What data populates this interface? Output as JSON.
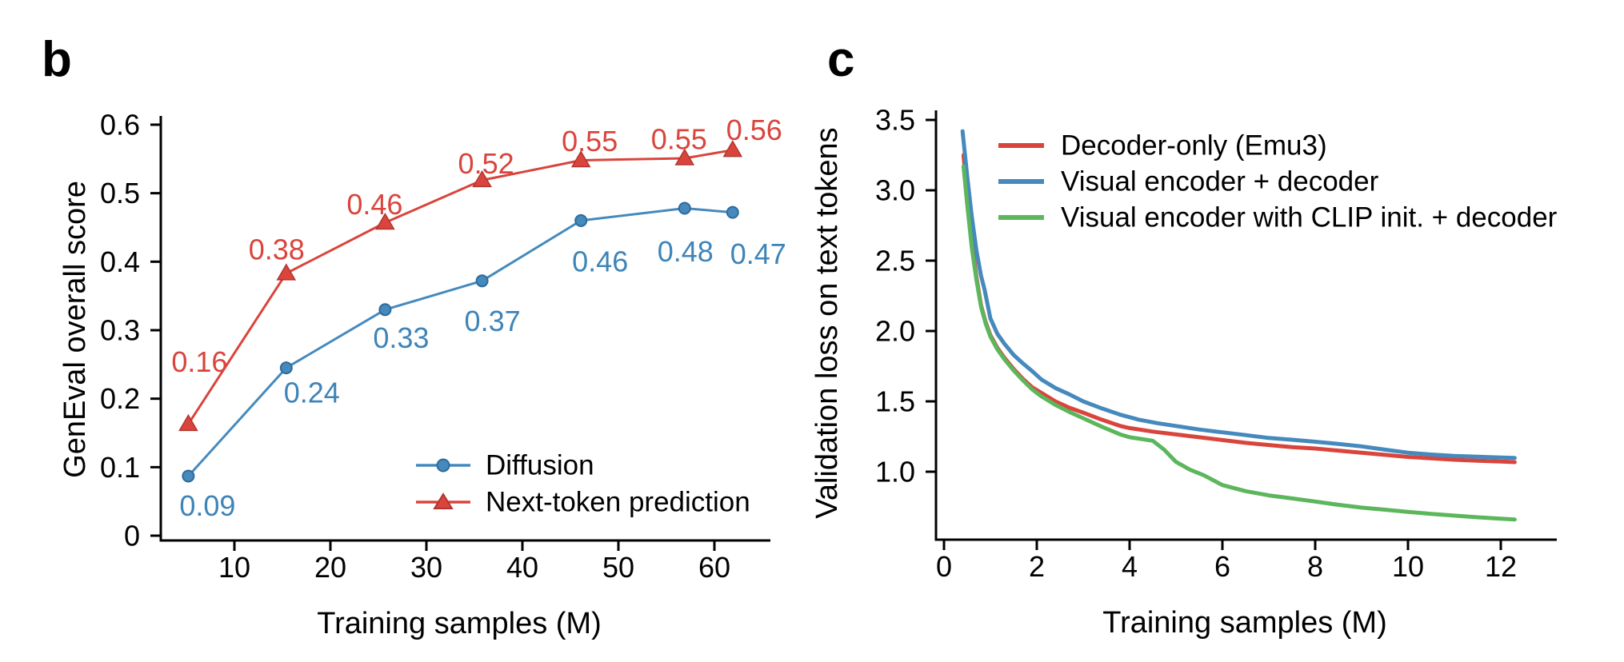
{
  "figure": {
    "background": "#ffffff",
    "panel_b_letter": "b",
    "panel_c_letter": "c"
  },
  "colors": {
    "blue": "#4589bd",
    "blue_marker_edge": "#2e6b99",
    "red": "#d9453c",
    "red_marker_edge": "#b23530",
    "green": "#5cb65c",
    "axis": "#000000"
  },
  "chart_data": [
    {
      "type": "line",
      "panel": "b",
      "title": "",
      "xlabel": "Training samples (M)",
      "ylabel": "GenEval overall score",
      "xlim": [
        2.3,
        65.8
      ],
      "ylim": [
        0,
        0.63
      ],
      "xticks": [
        10,
        20,
        30,
        40,
        50,
        60
      ],
      "yticks": [
        "0",
        "0.1",
        "0.2",
        "0.3",
        "0.4",
        "0.5",
        "0.6"
      ],
      "grid": false,
      "legend_position": "lower right",
      "series": [
        {
          "name": "Diffusion",
          "color": "#4589bd",
          "marker": "circle",
          "x": [
            5.2,
            15.4,
            25.7,
            35.8,
            46.1,
            56.9,
            61.9
          ],
          "y": [
            0.087,
            0.245,
            0.33,
            0.372,
            0.46,
            0.478,
            0.472
          ],
          "labels": [
            "0.09",
            "0.24",
            "0.33",
            "0.37",
            "0.46",
            "0.48",
            "0.47"
          ]
        },
        {
          "name": "Next-token prediction",
          "color": "#d9453c",
          "marker": "triangle",
          "x": [
            5.2,
            15.4,
            25.7,
            35.8,
            46.1,
            56.9,
            61.9
          ],
          "y": [
            0.163,
            0.383,
            0.457,
            0.519,
            0.548,
            0.551,
            0.563
          ],
          "labels": [
            "0.16",
            "0.38",
            "0.46",
            "0.52",
            "0.55",
            "0.55",
            "0.56"
          ]
        }
      ]
    },
    {
      "type": "line",
      "panel": "c",
      "title": "",
      "xlabel": "Training samples (M)",
      "ylabel": "Validation loss on text tokens",
      "xlim": [
        -0.2,
        13.2
      ],
      "ylim": [
        0.52,
        3.56
      ],
      "xticks": [
        0,
        2,
        4,
        6,
        8,
        10,
        12
      ],
      "yticks": [
        "1.0",
        "1.5",
        "2.0",
        "2.5",
        "3.0",
        "3.5"
      ],
      "grid": false,
      "legend_position": "upper right",
      "series": [
        {
          "name": "Decoder-only (Emu3)",
          "color": "#d9453c",
          "points": [
            [
              0.42,
              3.25
            ],
            [
              0.5,
              2.96
            ],
            [
              0.6,
              2.63
            ],
            [
              0.7,
              2.38
            ],
            [
              0.8,
              2.18
            ],
            [
              0.9,
              2.06
            ],
            [
              1.0,
              1.97
            ],
            [
              1.15,
              1.88
            ],
            [
              1.3,
              1.81
            ],
            [
              1.5,
              1.73
            ],
            [
              1.7,
              1.66
            ],
            [
              1.9,
              1.6
            ],
            [
              2.1,
              1.56
            ],
            [
              2.4,
              1.5
            ],
            [
              2.7,
              1.455
            ],
            [
              3.0,
              1.42
            ],
            [
              3.4,
              1.37
            ],
            [
              3.8,
              1.325
            ],
            [
              4.0,
              1.31
            ],
            [
              4.5,
              1.285
            ],
            [
              5.0,
              1.265
            ],
            [
              5.5,
              1.245
            ],
            [
              6.0,
              1.225
            ],
            [
              6.5,
              1.205
            ],
            [
              7.0,
              1.19
            ],
            [
              7.5,
              1.175
            ],
            [
              8.0,
              1.165
            ],
            [
              8.5,
              1.15
            ],
            [
              9.0,
              1.135
            ],
            [
              9.5,
              1.12
            ],
            [
              10.0,
              1.105
            ],
            [
              10.5,
              1.095
            ],
            [
              11.0,
              1.085
            ],
            [
              11.5,
              1.078
            ],
            [
              12.0,
              1.072
            ],
            [
              12.3,
              1.068
            ]
          ]
        },
        {
          "name": "Visual encoder + decoder",
          "color": "#4589bd",
          "points": [
            [
              0.4,
              3.42
            ],
            [
              0.5,
              3.1
            ],
            [
              0.6,
              2.81
            ],
            [
              0.7,
              2.57
            ],
            [
              0.8,
              2.39
            ],
            [
              0.87,
              2.3
            ],
            [
              1.0,
              2.09
            ],
            [
              1.15,
              1.98
            ],
            [
              1.3,
              1.91
            ],
            [
              1.5,
              1.83
            ],
            [
              1.7,
              1.77
            ],
            [
              1.9,
              1.715
            ],
            [
              2.1,
              1.655
            ],
            [
              2.4,
              1.595
            ],
            [
              2.7,
              1.55
            ],
            [
              3.0,
              1.5
            ],
            [
              3.4,
              1.45
            ],
            [
              3.8,
              1.405
            ],
            [
              4.2,
              1.37
            ],
            [
              4.6,
              1.345
            ],
            [
              5.0,
              1.325
            ],
            [
              5.5,
              1.3
            ],
            [
              6.0,
              1.28
            ],
            [
              6.5,
              1.26
            ],
            [
              7.0,
              1.24
            ],
            [
              7.5,
              1.227
            ],
            [
              8.0,
              1.213
            ],
            [
              8.5,
              1.197
            ],
            [
              9.0,
              1.18
            ],
            [
              9.5,
              1.157
            ],
            [
              10.0,
              1.135
            ],
            [
              10.5,
              1.122
            ],
            [
              11.0,
              1.112
            ],
            [
              11.5,
              1.106
            ],
            [
              12.0,
              1.101
            ],
            [
              12.3,
              1.098
            ]
          ]
        },
        {
          "name": "Visual encoder with CLIP init. + decoder",
          "color": "#5cb65c",
          "points": [
            [
              0.42,
              3.17
            ],
            [
              0.5,
              2.9
            ],
            [
              0.6,
              2.59
            ],
            [
              0.7,
              2.36
            ],
            [
              0.8,
              2.17
            ],
            [
              0.9,
              2.05
            ],
            [
              1.0,
              1.96
            ],
            [
              1.15,
              1.87
            ],
            [
              1.3,
              1.8
            ],
            [
              1.5,
              1.72
            ],
            [
              1.7,
              1.65
            ],
            [
              1.9,
              1.585
            ],
            [
              2.1,
              1.535
            ],
            [
              2.4,
              1.475
            ],
            [
              2.7,
              1.425
            ],
            [
              3.0,
              1.38
            ],
            [
              3.4,
              1.32
            ],
            [
              3.8,
              1.265
            ],
            [
              4.0,
              1.245
            ],
            [
              4.3,
              1.23
            ],
            [
              4.5,
              1.22
            ],
            [
              4.75,
              1.155
            ],
            [
              5.0,
              1.07
            ],
            [
              5.3,
              1.015
            ],
            [
              5.6,
              0.975
            ],
            [
              6.0,
              0.905
            ],
            [
              6.5,
              0.862
            ],
            [
              7.0,
              0.832
            ],
            [
              7.5,
              0.81
            ],
            [
              8.0,
              0.788
            ],
            [
              8.5,
              0.765
            ],
            [
              9.0,
              0.745
            ],
            [
              9.5,
              0.73
            ],
            [
              10.0,
              0.715
            ],
            [
              10.5,
              0.7
            ],
            [
              11.0,
              0.688
            ],
            [
              11.5,
              0.676
            ],
            [
              12.0,
              0.666
            ],
            [
              12.3,
              0.66
            ]
          ]
        }
      ]
    }
  ]
}
